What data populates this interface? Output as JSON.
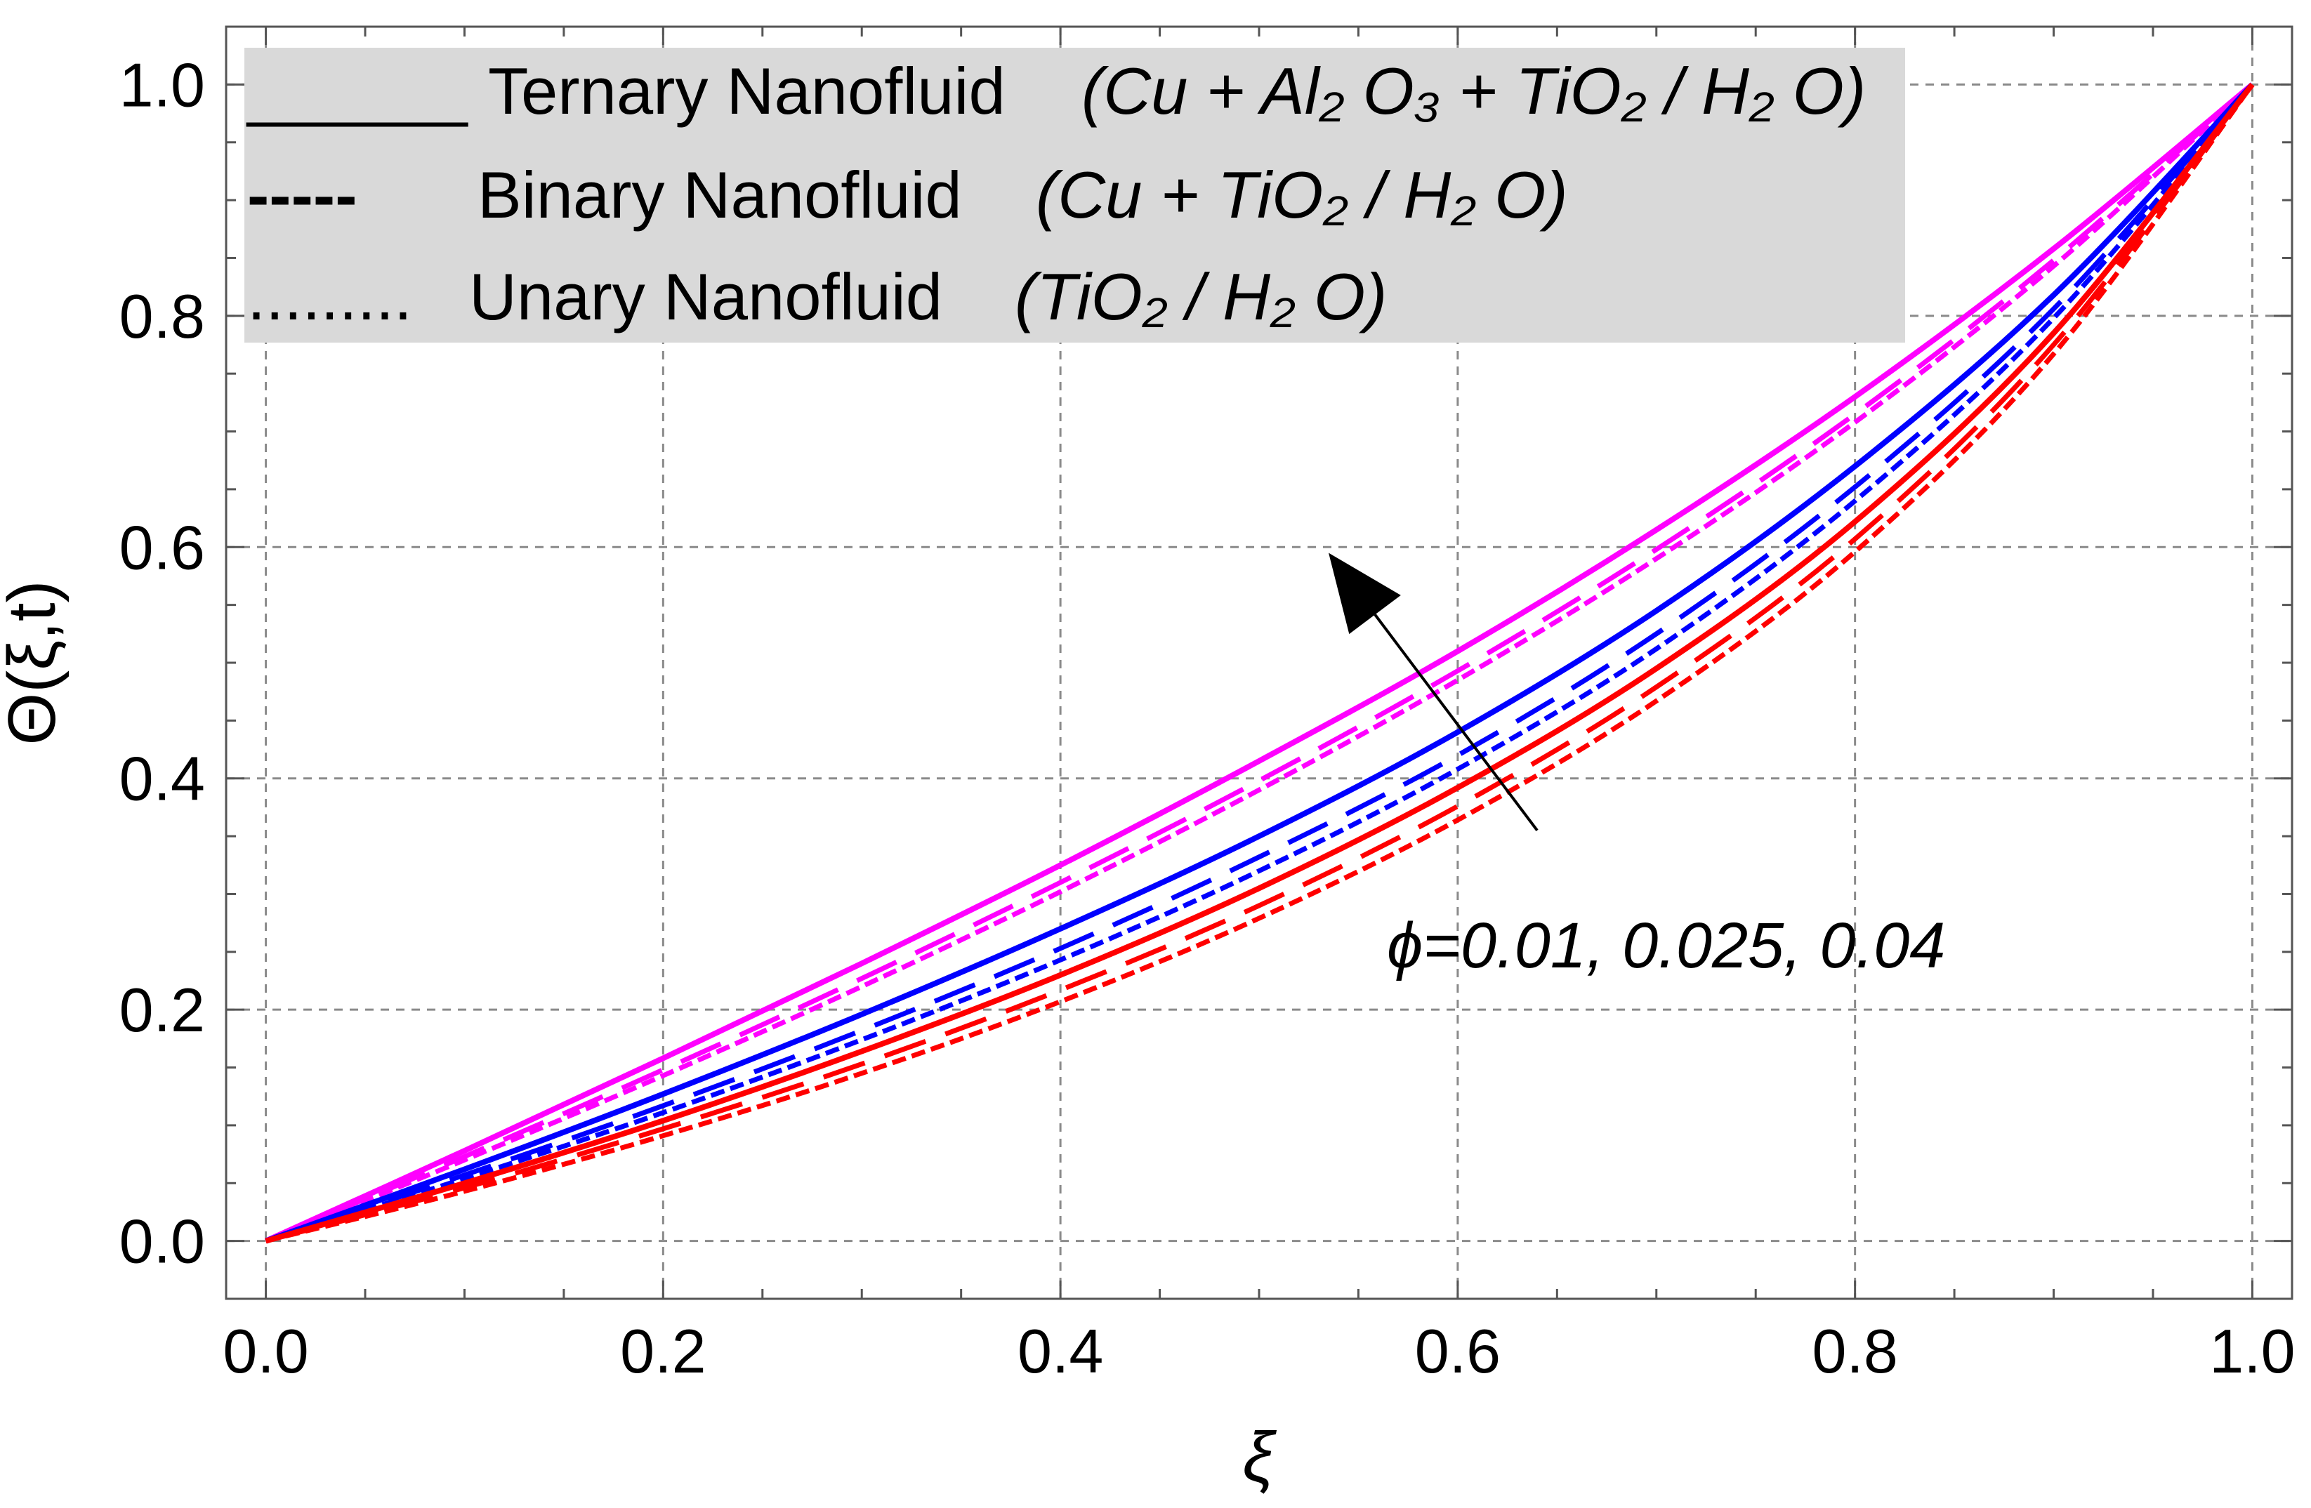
{
  "chart_data": {
    "type": "line",
    "title": "",
    "xlabel": "ξ",
    "ylabel": "Θ(ξ,t)",
    "xlim": [
      -0.02,
      1.02
    ],
    "ylim": [
      -0.05,
      1.05
    ],
    "x_ticks": [
      0.0,
      0.2,
      0.4,
      0.6,
      0.8,
      1.0
    ],
    "y_ticks": [
      0.0,
      0.2,
      0.4,
      0.6,
      0.8,
      1.0
    ],
    "x_tick_labels": [
      "0.0",
      "0.2",
      "0.4",
      "0.6",
      "0.8",
      "1.0"
    ],
    "y_tick_labels": [
      "0.0",
      "0.2",
      "0.4",
      "0.6",
      "0.8",
      "1.0"
    ],
    "grid": true,
    "x": [
      0,
      0.1,
      0.2,
      0.3,
      0.4,
      0.5,
      0.6,
      0.7,
      0.8,
      0.9,
      1.0
    ],
    "legend": {
      "position": "top-left",
      "entries": [
        {
          "marker": "______",
          "text": "Ternary Nanofluid",
          "formula": "(Cu + Al₂ O₃ + TiO₂ / H₂ O)",
          "style": "solid"
        },
        {
          "marker": "-----",
          "text": "Binary Nanofluid",
          "formula": "(Cu + TiO₂ / H₂ O)",
          "style": "dashed"
        },
        {
          "marker": ".........",
          "text": "Unary Nanofluid",
          "formula": "(TiO₂ / H₂ O)",
          "style": "dotted"
        }
      ]
    },
    "annotation": {
      "text": "ϕ=0.01,  0.025,  0.04",
      "arrow_from": [
        0.64,
        0.355
      ],
      "arrow_to": [
        0.535,
        0.595
      ]
    },
    "series": [
      {
        "name": "Ternary, ϕ=0.04",
        "fluid": "ternary",
        "phi": 0.04,
        "color": "#ff00ff",
        "style": "solid",
        "values": [
          0.0,
          0.078,
          0.158,
          0.24,
          0.325,
          0.415,
          0.51,
          0.615,
          0.73,
          0.858,
          1.0
        ]
      },
      {
        "name": "Binary, ϕ=0.04",
        "fluid": "binary",
        "phi": 0.04,
        "color": "#ff00ff",
        "style": "dashed",
        "values": [
          0.0,
          0.073,
          0.148,
          0.227,
          0.31,
          0.398,
          0.493,
          0.598,
          0.715,
          0.848,
          1.0
        ]
      },
      {
        "name": "Unary, ϕ=0.04",
        "fluid": "unary",
        "phi": 0.04,
        "color": "#ff00ff",
        "style": "dotted",
        "values": [
          0.0,
          0.07,
          0.143,
          0.22,
          0.302,
          0.39,
          0.485,
          0.59,
          0.708,
          0.843,
          1.0
        ]
      },
      {
        "name": "Ternary, ϕ=0.025",
        "fluid": "ternary",
        "phi": 0.025,
        "color": "#0000ff",
        "style": "solid",
        "values": [
          0.0,
          0.062,
          0.127,
          0.196,
          0.27,
          0.35,
          0.44,
          0.545,
          0.67,
          0.818,
          1.0
        ]
      },
      {
        "name": "Binary, ϕ=0.025",
        "fluid": "binary",
        "phi": 0.025,
        "color": "#0000ff",
        "style": "dashed",
        "values": [
          0.0,
          0.057,
          0.117,
          0.182,
          0.253,
          0.332,
          0.42,
          0.525,
          0.652,
          0.806,
          1.0
        ]
      },
      {
        "name": "Unary, ϕ=0.025",
        "fluid": "unary",
        "phi": 0.025,
        "color": "#0000ff",
        "style": "dotted",
        "values": [
          0.0,
          0.054,
          0.111,
          0.174,
          0.243,
          0.32,
          0.408,
          0.512,
          0.64,
          0.798,
          1.0
        ]
      },
      {
        "name": "Ternary, ϕ=0.01",
        "fluid": "ternary",
        "phi": 0.01,
        "color": "#ff0000",
        "style": "solid",
        "values": [
          0.0,
          0.05,
          0.104,
          0.164,
          0.23,
          0.305,
          0.392,
          0.495,
          0.622,
          0.785,
          1.0
        ]
      },
      {
        "name": "Binary, ϕ=0.01",
        "fluid": "binary",
        "phi": 0.01,
        "color": "#ff0000",
        "style": "dashed",
        "values": [
          0.0,
          0.046,
          0.097,
          0.153,
          0.217,
          0.29,
          0.376,
          0.479,
          0.607,
          0.775,
          1.0
        ]
      },
      {
        "name": "Unary, ϕ=0.01",
        "fluid": "unary",
        "phi": 0.01,
        "color": "#ff0000",
        "style": "dotted",
        "values": [
          0.0,
          0.043,
          0.091,
          0.145,
          0.207,
          0.279,
          0.364,
          0.467,
          0.596,
          0.767,
          1.0
        ]
      }
    ]
  }
}
